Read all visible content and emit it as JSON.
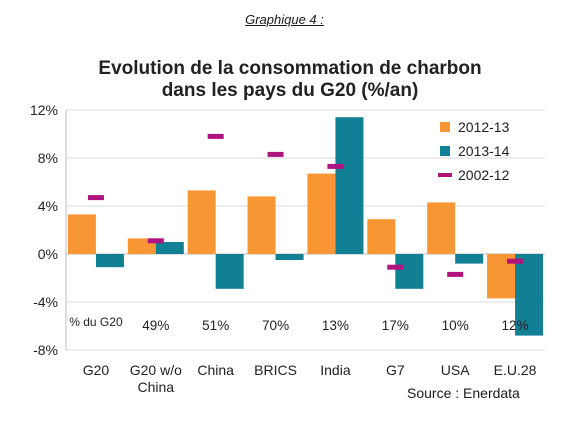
{
  "caption": "Graphique 4 :",
  "source": "Source : Enerdata",
  "chart_data": {
    "type": "bar",
    "title": [
      "Evolution de la consommation de charbon",
      "dans les pays du G20 (%/an)"
    ],
    "categories": [
      [
        "G20"
      ],
      [
        "G20 w/o",
        "China"
      ],
      [
        "China"
      ],
      [
        "BRICS"
      ],
      [
        "India"
      ],
      [
        "G7"
      ],
      [
        "USA"
      ],
      [
        "E.U.28"
      ]
    ],
    "ylim": [
      -8,
      12
    ],
    "yticks": [
      12,
      8,
      4,
      0,
      -4,
      -8
    ],
    "ytick_labels": [
      "12%",
      "8%",
      "4%",
      "0%",
      "-4%",
      "-8%"
    ],
    "series": [
      {
        "name": "2012-13",
        "type": "bar",
        "color": "#F79633",
        "values": [
          3.3,
          1.3,
          5.3,
          4.8,
          6.7,
          2.9,
          4.3,
          -3.7
        ]
      },
      {
        "name": "2013-14",
        "type": "bar",
        "color": "#117F94",
        "values": [
          -1.1,
          1.0,
          -2.9,
          -0.5,
          11.4,
          -2.9,
          -0.8,
          -6.8
        ]
      },
      {
        "name": "2002-12",
        "type": "marker",
        "color": "#B0127E",
        "values": [
          4.7,
          1.1,
          9.8,
          8.3,
          7.3,
          -1.1,
          -1.7,
          -0.6
        ]
      }
    ],
    "legend_position": "top-right",
    "share_header": "% du G20",
    "shares": [
      "",
      "49%",
      "51%",
      "70%",
      "13%",
      "17%",
      "10%",
      "12%"
    ]
  }
}
